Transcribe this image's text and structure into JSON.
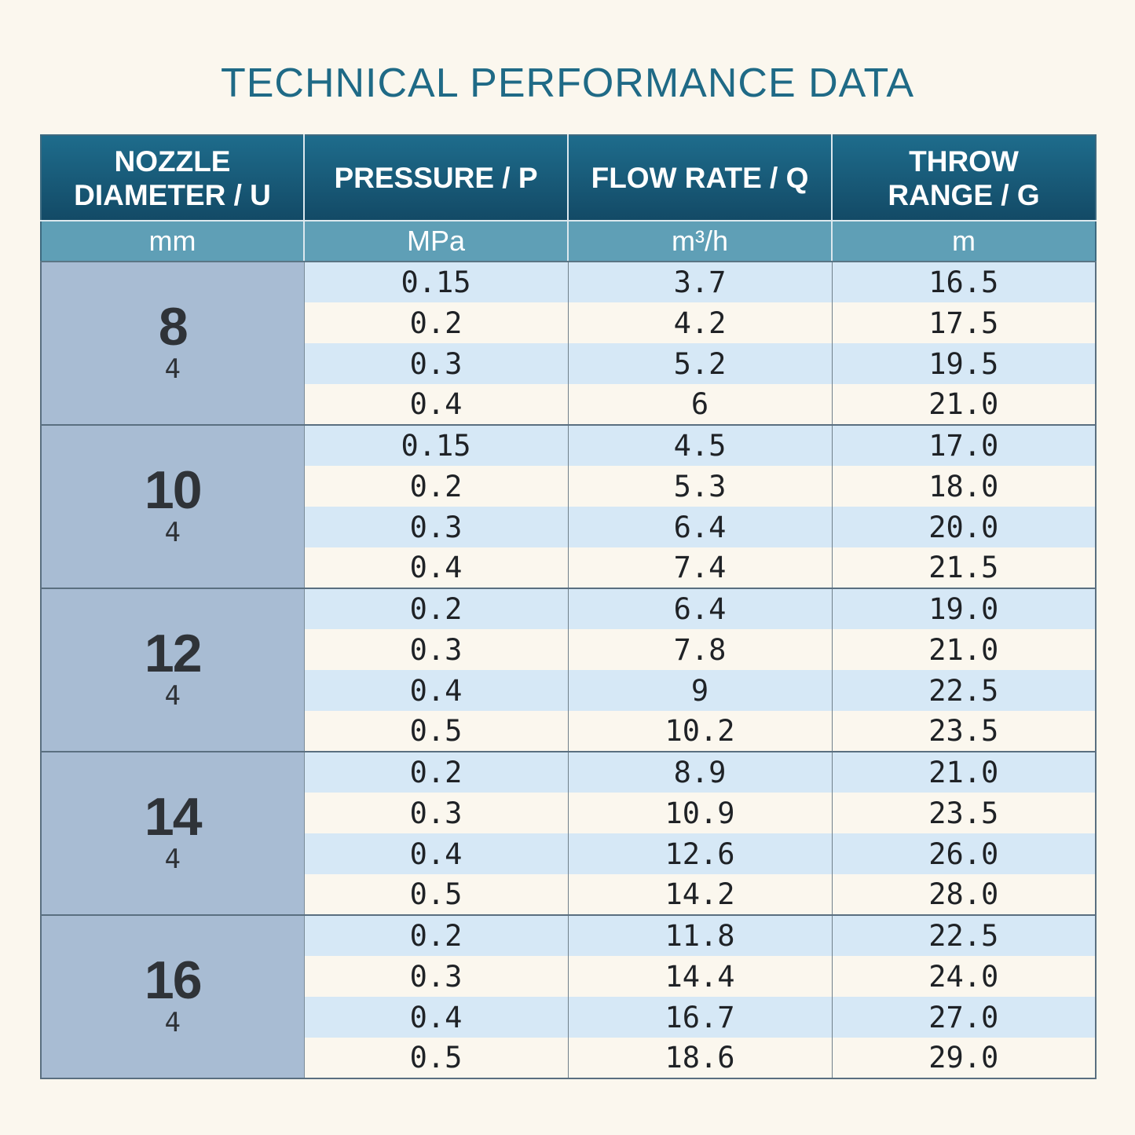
{
  "title": "TECHNICAL PERFORMANCE DATA",
  "table": {
    "headers": [
      {
        "line1": "NOZZLE",
        "line2": "DIAMETER / U"
      },
      {
        "line1": "PRESSURE / P",
        "line2": ""
      },
      {
        "line1": "FLOW RATE / Q",
        "line2": ""
      },
      {
        "line1": "THROW",
        "line2": "RANGE / G"
      }
    ],
    "units": [
      "mm",
      "MPa",
      "m³/h",
      "m"
    ],
    "groups": [
      {
        "diameter": "8",
        "sub": "4",
        "rows": [
          {
            "pressure": "0.15",
            "flow": "3.7",
            "range": "16.5"
          },
          {
            "pressure": "0.2",
            "flow": "4.2",
            "range": "17.5"
          },
          {
            "pressure": "0.3",
            "flow": "5.2",
            "range": "19.5"
          },
          {
            "pressure": "0.4",
            "flow": "6",
            "range": "21.0"
          }
        ]
      },
      {
        "diameter": "10",
        "sub": "4",
        "rows": [
          {
            "pressure": "0.15",
            "flow": "4.5",
            "range": "17.0"
          },
          {
            "pressure": "0.2",
            "flow": "5.3",
            "range": "18.0"
          },
          {
            "pressure": "0.3",
            "flow": "6.4",
            "range": "20.0"
          },
          {
            "pressure": "0.4",
            "flow": "7.4",
            "range": "21.5"
          }
        ]
      },
      {
        "diameter": "12",
        "sub": "4",
        "rows": [
          {
            "pressure": "0.2",
            "flow": "6.4",
            "range": "19.0"
          },
          {
            "pressure": "0.3",
            "flow": "7.8",
            "range": "21.0"
          },
          {
            "pressure": "0.4",
            "flow": "9",
            "range": "22.5"
          },
          {
            "pressure": "0.5",
            "flow": "10.2",
            "range": "23.5"
          }
        ]
      },
      {
        "diameter": "14",
        "sub": "4",
        "rows": [
          {
            "pressure": "0.2",
            "flow": "8.9",
            "range": "21.0"
          },
          {
            "pressure": "0.3",
            "flow": "10.9",
            "range": "23.5"
          },
          {
            "pressure": "0.4",
            "flow": "12.6",
            "range": "26.0"
          },
          {
            "pressure": "0.5",
            "flow": "14.2",
            "range": "28.0"
          }
        ]
      },
      {
        "diameter": "16",
        "sub": "4",
        "rows": [
          {
            "pressure": "0.2",
            "flow": "11.8",
            "range": "22.5"
          },
          {
            "pressure": "0.3",
            "flow": "14.4",
            "range": "24.0"
          },
          {
            "pressure": "0.4",
            "flow": "16.7",
            "range": "27.0"
          },
          {
            "pressure": "0.5",
            "flow": "18.6",
            "range": "29.0"
          }
        ]
      }
    ]
  }
}
